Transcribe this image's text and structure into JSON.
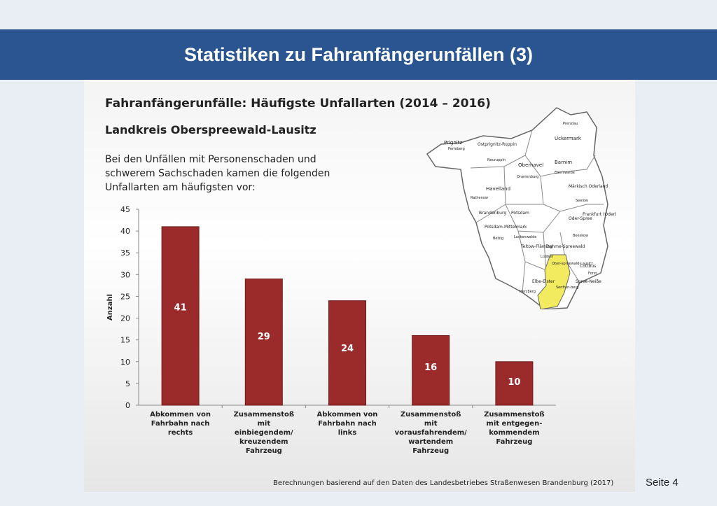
{
  "slide": {
    "title": "Statistiken zu Fahranfängerunfällen (3)",
    "page_number": "Seite 4"
  },
  "content": {
    "heading": "Fahranfängerunfälle: Häufigste Unfallarten (2014 – 2016)",
    "subheading": "Landkreis Oberspreewald-Lausitz",
    "intro": "Bei den Unfällen mit Personenschaden und schwerem Sachschaden kamen die folgenden Unfallarten am häufigsten vor:",
    "source": "Berechnungen basierend auf den Daten des Landesbetriebes Straßenwesen Brandenburg (2017)"
  },
  "map": {
    "highlight_color": "#f2ea5f",
    "labels": [
      "Prignitz",
      "Perleberg",
      "Ostprignitz-Ruppin",
      "Neuruppin",
      "Uckermark",
      "Prenzlau",
      "Oberhavel",
      "Oranienburg",
      "Barnim",
      "Eberswalde",
      "Havelland",
      "Rathenow",
      "Märkisch Oderland",
      "Seelow",
      "Brandenburg",
      "Potsdam",
      "Frankfurt (Oder)",
      "Potsdam-Mittelmark",
      "Belzig",
      "Oder-Spree",
      "Beeskow",
      "Luckenwalde",
      "Teltow-Fläming",
      "Dahme-Spreewald",
      "Lübben",
      "Ober-spreewald-Lausitz",
      "Cottbus",
      "Forst",
      "Spree-Neiße",
      "Senften-berg",
      "Elbe-Elster",
      "Herzberg"
    ]
  },
  "chart_data": {
    "type": "bar",
    "categories": [
      [
        "Abkommen von",
        "Fahrbahn nach",
        "rechts"
      ],
      [
        "Zusammenstoß",
        "mit",
        "einbiegendem/",
        "kreuzendem",
        "Fahrzeug"
      ],
      [
        "Abkommen von",
        "Fahrbahn nach",
        "links"
      ],
      [
        "Zusammenstoß",
        "mit",
        "vorausfahrendem/",
        "wartendem",
        "Fahrzeug"
      ],
      [
        "Zusammenstoß",
        "mit entgegen-",
        "kommendem",
        "Fahrzeug"
      ]
    ],
    "values": [
      41,
      29,
      24,
      16,
      10
    ],
    "data_labels": [
      "41",
      "29",
      "24",
      "16",
      "10"
    ],
    "ylabel": "Anzahl",
    "ylim": [
      0,
      45
    ],
    "yticks": [
      0,
      5,
      10,
      15,
      20,
      25,
      30,
      35,
      40,
      45
    ],
    "bar_color": "#9b2b2b",
    "grid": false
  }
}
